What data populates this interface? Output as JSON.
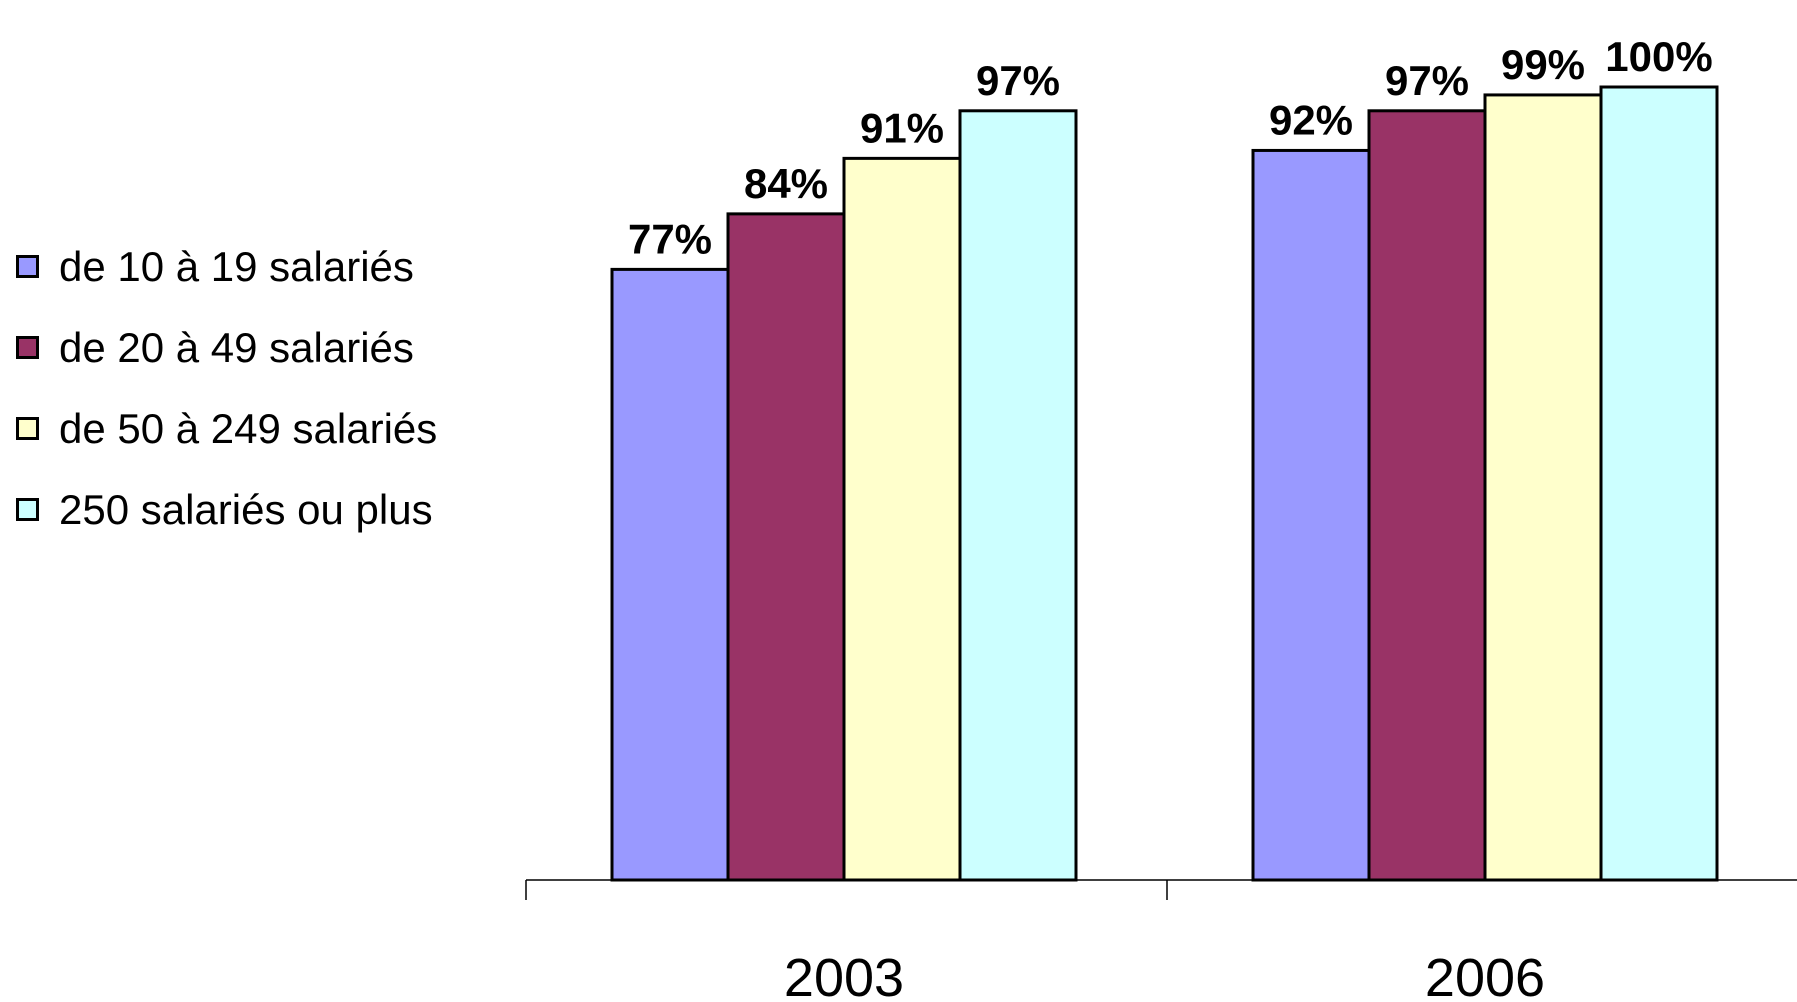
{
  "chart_data": {
    "type": "bar",
    "categories": [
      "2003",
      "2006"
    ],
    "series": [
      {
        "name": "de 10 à 19 salariés",
        "color": "#9999FF",
        "values": [
          77,
          92
        ],
        "labels": [
          "77%",
          "92%"
        ]
      },
      {
        "name": "de 20 à 49 salariés",
        "color": "#993366",
        "values": [
          84,
          97
        ],
        "labels": [
          "84%",
          "97%"
        ]
      },
      {
        "name": "de 50 à 249 salariés",
        "color": "#FFFFCC",
        "values": [
          91,
          99
        ],
        "labels": [
          "91%",
          "99%"
        ]
      },
      {
        "name": "250 salariés ou plus",
        "color": "#CCFFFF",
        "values": [
          97,
          100
        ],
        "labels": [
          "97%",
          "100%"
        ]
      }
    ],
    "ylim": [
      0,
      100
    ],
    "grid": false,
    "legend_position": "left",
    "show_data_labels": true
  }
}
